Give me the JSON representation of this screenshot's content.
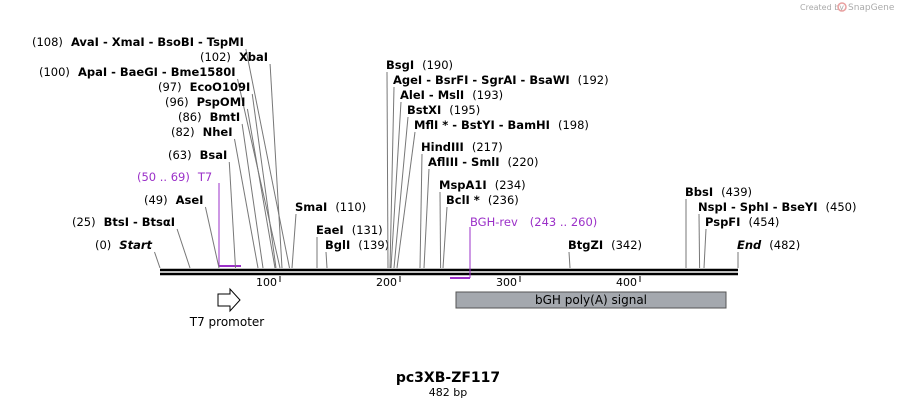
{
  "watermark": {
    "prefix": "Created by",
    "brand": "SnapGene"
  },
  "enzymes": [
    {
      "position": "(108)",
      "name": "AvaI  -  XmaI  -  BsoBI  -  TspMI"
    },
    {
      "position": "(102)",
      "name": "XbaI"
    },
    {
      "position": "(100)",
      "name": "ApaI  -  BaeGI  -  Bme1580I"
    },
    {
      "position": "(97)",
      "name": "EcoO109I"
    },
    {
      "position": "(96)",
      "name": "PspOMI"
    },
    {
      "position": "(86)",
      "name": "BmtI"
    },
    {
      "position": "(82)",
      "name": "NheI"
    },
    {
      "position": "(63)",
      "name": "BsaI"
    },
    {
      "position": "(49)",
      "name": "AseI"
    },
    {
      "position": "(25)",
      "name": "BtsI  -  BtsαI"
    },
    {
      "name": "SmaI",
      "position": "(110)"
    },
    {
      "name": "EaeI",
      "position": "(131)"
    },
    {
      "name": "BglI",
      "position": "(139)"
    },
    {
      "name": "BsgI",
      "position": "(190)"
    },
    {
      "name": "AgeI  -  BsrFI  -  SgrAI  -  BsaWI",
      "position": "(192)"
    },
    {
      "name": "AleI  -  MslI",
      "position": "(193)"
    },
    {
      "name": "BstXI",
      "position": "(195)"
    },
    {
      "name": "MflI *  -  BstYI  -  BamHI",
      "position": "(198)"
    },
    {
      "name": "HindIII",
      "position": "(217)"
    },
    {
      "name": "AflIII  -  SmlI",
      "position": "(220)"
    },
    {
      "name": "MspA1I",
      "position": "(234)"
    },
    {
      "name": "BclI *",
      "position": "(236)"
    },
    {
      "name": "BtgZI",
      "position": "(342)"
    },
    {
      "name": "BbsI",
      "position": "(439)"
    },
    {
      "name": "NspI  -  SphI  -  BseYI",
      "position": "(450)"
    },
    {
      "name": "PspFI",
      "position": "(454)"
    }
  ],
  "start": {
    "position": "(0)",
    "name": "Start"
  },
  "end": {
    "name": "End",
    "position": "(482)"
  },
  "primers": [
    {
      "range": "(50 .. 69)",
      "name": "T7"
    },
    {
      "name": "BGH-rev",
      "range": "(243 .. 260)"
    }
  ],
  "ruler": [
    "100",
    "200",
    "300",
    "400"
  ],
  "features": [
    {
      "name": "T7 promoter"
    },
    {
      "name": "bGH poly(A) signal"
    }
  ],
  "title": "pc3XB-ZF117",
  "subtitle": "482 bp"
}
